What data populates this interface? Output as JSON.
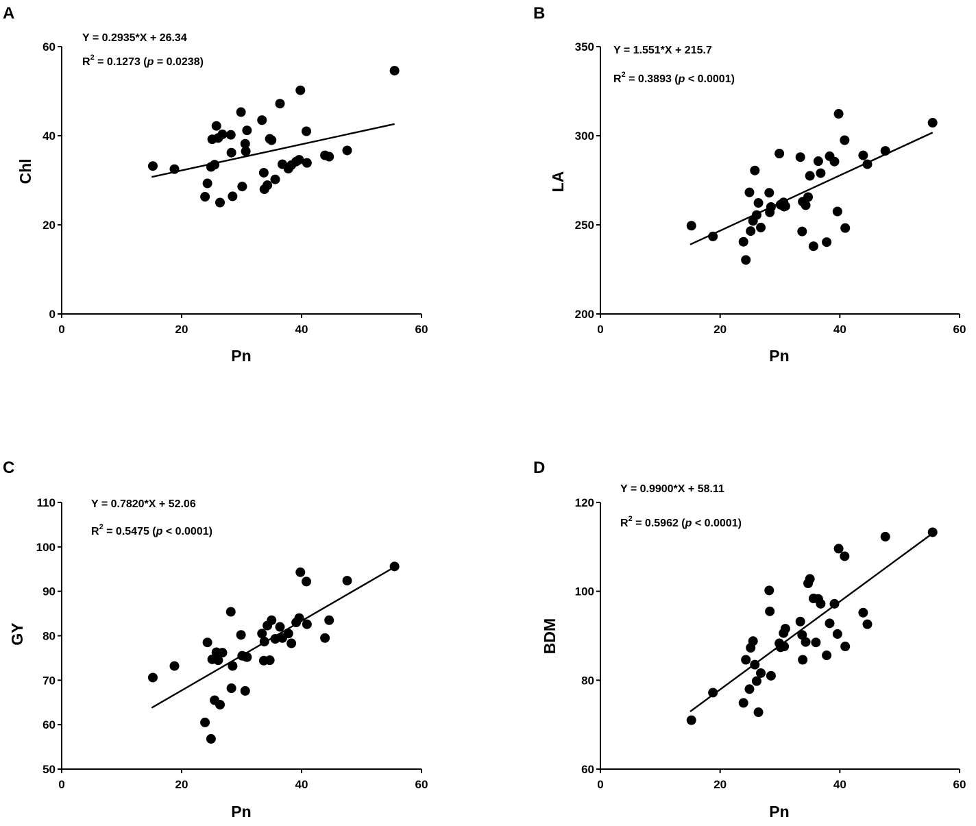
{
  "chart_data": [
    {
      "type": "scatter",
      "panel_label": "A",
      "xlabel": "Pn",
      "ylabel": "Chl",
      "xlim": [
        0,
        60
      ],
      "ylim": [
        0,
        60
      ],
      "xticks": [
        0,
        20,
        40,
        60
      ],
      "yticks": [
        0,
        20,
        40,
        60
      ],
      "equation": "Y = 0.2935*X + 26.34",
      "r2_prefix": "R",
      "r2_sup": "2",
      "r2_value": " = 0.1273 (",
      "p_symbol": "p",
      "p_value": " = 0.0238)",
      "regression": {
        "slope": 0.2935,
        "intercept": 26.34,
        "x_range": [
          15,
          55.5
        ]
      },
      "points": [
        {
          "x": 15.2,
          "y": 33.2
        },
        {
          "x": 18.8,
          "y": 32.5
        },
        {
          "x": 23.9,
          "y": 26.3
        },
        {
          "x": 24.3,
          "y": 29.3
        },
        {
          "x": 24.9,
          "y": 33.0
        },
        {
          "x": 25.1,
          "y": 39.2
        },
        {
          "x": 25.5,
          "y": 33.5
        },
        {
          "x": 25.8,
          "y": 42.2
        },
        {
          "x": 26.1,
          "y": 39.5
        },
        {
          "x": 26.4,
          "y": 25.0
        },
        {
          "x": 26.8,
          "y": 40.3
        },
        {
          "x": 28.2,
          "y": 40.2
        },
        {
          "x": 28.3,
          "y": 36.2
        },
        {
          "x": 28.5,
          "y": 26.4
        },
        {
          "x": 29.9,
          "y": 45.3
        },
        {
          "x": 30.1,
          "y": 28.6
        },
        {
          "x": 30.6,
          "y": 38.2
        },
        {
          "x": 30.7,
          "y": 36.5
        },
        {
          "x": 30.9,
          "y": 41.2
        },
        {
          "x": 33.4,
          "y": 43.5
        },
        {
          "x": 33.7,
          "y": 31.7
        },
        {
          "x": 33.8,
          "y": 28.0
        },
        {
          "x": 34.3,
          "y": 28.9
        },
        {
          "x": 34.7,
          "y": 39.3
        },
        {
          "x": 35.0,
          "y": 39.0
        },
        {
          "x": 35.6,
          "y": 30.2
        },
        {
          "x": 36.4,
          "y": 47.2
        },
        {
          "x": 36.8,
          "y": 33.6
        },
        {
          "x": 37.8,
          "y": 32.6
        },
        {
          "x": 38.3,
          "y": 33.4
        },
        {
          "x": 39.1,
          "y": 34.2
        },
        {
          "x": 39.6,
          "y": 34.6
        },
        {
          "x": 39.8,
          "y": 50.2
        },
        {
          "x": 40.8,
          "y": 41.0
        },
        {
          "x": 40.9,
          "y": 33.9
        },
        {
          "x": 43.9,
          "y": 35.6
        },
        {
          "x": 44.6,
          "y": 35.3
        },
        {
          "x": 47.6,
          "y": 36.7
        },
        {
          "x": 55.5,
          "y": 54.6
        }
      ]
    },
    {
      "type": "scatter",
      "panel_label": "B",
      "xlabel": "Pn",
      "ylabel": "LA",
      "xlim": [
        0,
        60
      ],
      "ylim": [
        200,
        350
      ],
      "xticks": [
        0,
        20,
        40,
        60
      ],
      "yticks": [
        200,
        250,
        300,
        350
      ],
      "equation": "Y = 1.551*X + 215.7",
      "r2_prefix": "R",
      "r2_sup": "2",
      "r2_value": " = 0.3893 (",
      "p_symbol": "p",
      "p_value": " < 0.0001)",
      "regression": {
        "slope": 1.551,
        "intercept": 215.7,
        "x_range": [
          15,
          55.5
        ]
      },
      "points": [
        {
          "x": 15.2,
          "y": 249.5
        },
        {
          "x": 18.8,
          "y": 243.5
        },
        {
          "x": 23.9,
          "y": 240.5
        },
        {
          "x": 24.3,
          "y": 230.3
        },
        {
          "x": 24.9,
          "y": 268.2
        },
        {
          "x": 25.1,
          "y": 246.5
        },
        {
          "x": 25.5,
          "y": 252.2
        },
        {
          "x": 25.8,
          "y": 280.5
        },
        {
          "x": 26.1,
          "y": 255.5
        },
        {
          "x": 26.4,
          "y": 262.3
        },
        {
          "x": 26.8,
          "y": 248.5
        },
        {
          "x": 28.2,
          "y": 268.0
        },
        {
          "x": 28.3,
          "y": 257.0
        },
        {
          "x": 28.5,
          "y": 260.0
        },
        {
          "x": 29.9,
          "y": 290.0
        },
        {
          "x": 30.1,
          "y": 261.3
        },
        {
          "x": 30.6,
          "y": 262.6
        },
        {
          "x": 30.7,
          "y": 260.2
        },
        {
          "x": 30.9,
          "y": 260.5
        },
        {
          "x": 33.4,
          "y": 288.0
        },
        {
          "x": 33.7,
          "y": 246.3
        },
        {
          "x": 33.8,
          "y": 263.0
        },
        {
          "x": 34.3,
          "y": 261.0
        },
        {
          "x": 34.7,
          "y": 265.6
        },
        {
          "x": 35.0,
          "y": 277.5
        },
        {
          "x": 35.6,
          "y": 238.0
        },
        {
          "x": 36.4,
          "y": 285.7
        },
        {
          "x": 36.8,
          "y": 279.0
        },
        {
          "x": 37.8,
          "y": 240.3
        },
        {
          "x": 38.3,
          "y": 288.5
        },
        {
          "x": 39.1,
          "y": 285.5
        },
        {
          "x": 39.6,
          "y": 257.5
        },
        {
          "x": 39.8,
          "y": 312.3
        },
        {
          "x": 40.8,
          "y": 297.5
        },
        {
          "x": 40.9,
          "y": 248.2
        },
        {
          "x": 43.9,
          "y": 289.0
        },
        {
          "x": 44.6,
          "y": 284.0
        },
        {
          "x": 47.6,
          "y": 291.5
        },
        {
          "x": 55.5,
          "y": 307.3
        }
      ]
    },
    {
      "type": "scatter",
      "panel_label": "C",
      "xlabel": "Pn",
      "ylabel": "GY",
      "xlim": [
        0,
        60
      ],
      "ylim": [
        50,
        110
      ],
      "xticks": [
        0,
        20,
        40,
        60
      ],
      "yticks": [
        50,
        60,
        70,
        80,
        90,
        100,
        110
      ],
      "equation": "Y = 0.7820*X + 52.06",
      "r2_prefix": "R",
      "r2_sup": "2",
      "r2_value": " = 0.5475 (",
      "p_symbol": "p",
      "p_value": " < 0.0001)",
      "regression": {
        "slope": 0.782,
        "intercept": 52.06,
        "x_range": [
          15,
          55.5
        ]
      },
      "points": [
        {
          "x": 15.2,
          "y": 70.6
        },
        {
          "x": 18.8,
          "y": 73.2
        },
        {
          "x": 23.9,
          "y": 60.5
        },
        {
          "x": 24.3,
          "y": 78.5
        },
        {
          "x": 24.9,
          "y": 56.8
        },
        {
          "x": 25.1,
          "y": 74.7
        },
        {
          "x": 25.5,
          "y": 65.5
        },
        {
          "x": 25.8,
          "y": 76.3
        },
        {
          "x": 26.1,
          "y": 74.5
        },
        {
          "x": 26.4,
          "y": 64.5
        },
        {
          "x": 26.8,
          "y": 76.2
        },
        {
          "x": 28.2,
          "y": 85.4
        },
        {
          "x": 28.3,
          "y": 68.2
        },
        {
          "x": 28.5,
          "y": 73.2
        },
        {
          "x": 29.9,
          "y": 80.2
        },
        {
          "x": 30.1,
          "y": 75.5
        },
        {
          "x": 30.6,
          "y": 67.6
        },
        {
          "x": 30.7,
          "y": 75.3
        },
        {
          "x": 30.9,
          "y": 75.2
        },
        {
          "x": 33.4,
          "y": 80.5
        },
        {
          "x": 33.7,
          "y": 74.4
        },
        {
          "x": 33.8,
          "y": 78.7
        },
        {
          "x": 34.3,
          "y": 82.3
        },
        {
          "x": 34.7,
          "y": 74.5
        },
        {
          "x": 35.0,
          "y": 83.5
        },
        {
          "x": 35.6,
          "y": 79.3
        },
        {
          "x": 36.4,
          "y": 82.0
        },
        {
          "x": 36.8,
          "y": 79.5
        },
        {
          "x": 37.8,
          "y": 80.5
        },
        {
          "x": 38.3,
          "y": 78.3
        },
        {
          "x": 39.1,
          "y": 83.0
        },
        {
          "x": 39.6,
          "y": 84.0
        },
        {
          "x": 39.8,
          "y": 94.3
        },
        {
          "x": 40.8,
          "y": 92.2
        },
        {
          "x": 40.9,
          "y": 82.6
        },
        {
          "x": 43.9,
          "y": 79.5
        },
        {
          "x": 44.6,
          "y": 83.5
        },
        {
          "x": 47.6,
          "y": 92.4
        },
        {
          "x": 55.5,
          "y": 95.6
        }
      ]
    },
    {
      "type": "scatter",
      "panel_label": "D",
      "xlabel": "Pn",
      "ylabel": "BDM",
      "xlim": [
        0,
        60
      ],
      "ylim": [
        60,
        120
      ],
      "xticks": [
        0,
        20,
        40,
        60
      ],
      "yticks": [
        60,
        80,
        100,
        120
      ],
      "equation": "Y = 0.9900*X + 58.11",
      "r2_prefix": "R",
      "r2_sup": "2",
      "r2_value": " = 0.5962 (",
      "p_symbol": "p",
      "p_value": " < 0.0001)",
      "regression": {
        "slope": 0.99,
        "intercept": 58.11,
        "x_range": [
          15,
          55.5
        ]
      },
      "points": [
        {
          "x": 15.2,
          "y": 71.0
        },
        {
          "x": 18.8,
          "y": 77.2
        },
        {
          "x": 23.9,
          "y": 74.9
        },
        {
          "x": 24.3,
          "y": 84.6
        },
        {
          "x": 24.9,
          "y": 78.0
        },
        {
          "x": 25.1,
          "y": 87.3
        },
        {
          "x": 25.5,
          "y": 88.8
        },
        {
          "x": 25.8,
          "y": 83.5
        },
        {
          "x": 26.1,
          "y": 79.8
        },
        {
          "x": 26.4,
          "y": 72.8
        },
        {
          "x": 26.8,
          "y": 81.6
        },
        {
          "x": 28.2,
          "y": 100.2
        },
        {
          "x": 28.3,
          "y": 95.5
        },
        {
          "x": 28.5,
          "y": 81.0
        },
        {
          "x": 29.9,
          "y": 88.3
        },
        {
          "x": 30.1,
          "y": 87.4
        },
        {
          "x": 30.6,
          "y": 90.6
        },
        {
          "x": 30.7,
          "y": 87.6
        },
        {
          "x": 30.9,
          "y": 91.6
        },
        {
          "x": 33.4,
          "y": 93.2
        },
        {
          "x": 33.7,
          "y": 90.2
        },
        {
          "x": 33.8,
          "y": 84.6
        },
        {
          "x": 34.3,
          "y": 88.6
        },
        {
          "x": 34.7,
          "y": 101.8
        },
        {
          "x": 35.0,
          "y": 102.8
        },
        {
          "x": 35.6,
          "y": 98.4
        },
        {
          "x": 36.0,
          "y": 88.5
        },
        {
          "x": 36.4,
          "y": 98.3
        },
        {
          "x": 36.8,
          "y": 97.2
        },
        {
          "x": 37.8,
          "y": 85.6
        },
        {
          "x": 38.3,
          "y": 92.8
        },
        {
          "x": 39.1,
          "y": 97.2
        },
        {
          "x": 39.6,
          "y": 90.4
        },
        {
          "x": 39.8,
          "y": 109.6
        },
        {
          "x": 40.8,
          "y": 107.9
        },
        {
          "x": 40.9,
          "y": 87.6
        },
        {
          "x": 43.9,
          "y": 95.2
        },
        {
          "x": 44.6,
          "y": 92.6
        },
        {
          "x": 47.6,
          "y": 112.3
        },
        {
          "x": 55.5,
          "y": 113.3
        }
      ]
    }
  ]
}
